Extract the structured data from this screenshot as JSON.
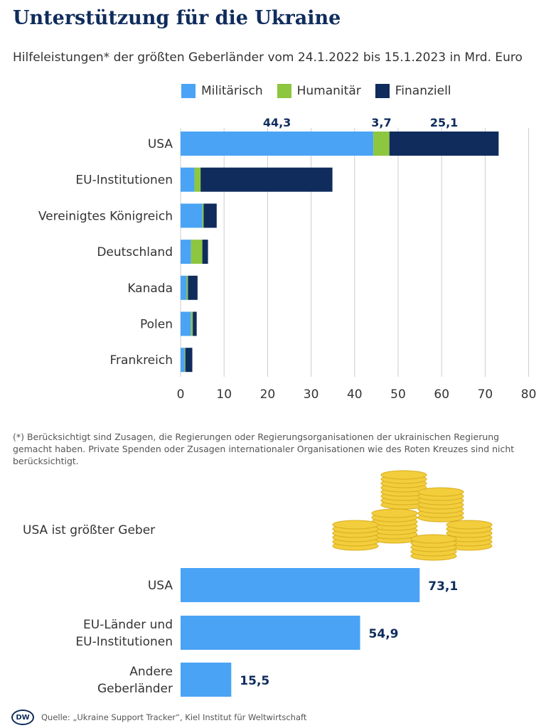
{
  "title": "Unterstützung für die Ukraine",
  "subtitle": "Hilfeleistungen* der größten Geberländer vom 24.1.2022 bis 15.1.2023 in Mrd. Euro",
  "legend": [
    {
      "label": "Militärisch",
      "color": "#4aa3f5"
    },
    {
      "label": "Humanitär",
      "color": "#8dc63f"
    },
    {
      "label": "Finanziell",
      "color": "#0f2c5c"
    }
  ],
  "chart_data": [
    {
      "type": "bar",
      "orientation": "horizontal",
      "stacked": true,
      "categories": [
        "USA",
        "EU-Institutionen",
        "Vereinigtes Königreich",
        "Deutschland",
        "Kanada",
        "Polen",
        "Frankreich"
      ],
      "series": [
        {
          "name": "Militärisch",
          "values": [
            44.3,
            3.2,
            5.0,
            2.4,
            1.4,
            2.4,
            0.9
          ]
        },
        {
          "name": "Humanitär",
          "values": [
            3.7,
            1.4,
            0.3,
            2.6,
            0.3,
            0.4,
            0.2
          ]
        },
        {
          "name": "Finanziell",
          "values": [
            25.1,
            30.3,
            3.0,
            1.3,
            2.2,
            0.9,
            1.6
          ]
        }
      ],
      "annotations": {
        "top_labels": [
          "44,3",
          "3,7",
          "25,1"
        ]
      },
      "xticks": [
        "0",
        "10",
        "20",
        "30",
        "40",
        "50",
        "60",
        "70",
        "80"
      ],
      "xlim": [
        0,
        80
      ],
      "grid": true
    },
    {
      "type": "bar",
      "orientation": "horizontal",
      "title": "USA ist größter Geber",
      "categories": [
        [
          "USA"
        ],
        [
          "EU-Länder und",
          "EU-Institutionen"
        ],
        [
          "Andere",
          "Geberländer"
        ]
      ],
      "values": [
        73.1,
        54.9,
        15.5
      ],
      "value_labels": [
        "73,1",
        "54,9",
        "15,5"
      ],
      "color": "#4aa3f5"
    }
  ],
  "footnote": "(*) Berücksichtigt sind Zusagen, die Regierungen oder Regierungsorganisationen der ukrainischen Regierung gemacht haben. Private Spenden oder Zusagen internationaler Organisationen wie des Roten Kreuzes sind nicht berücksichtigt.",
  "section2_title": "USA ist größter Geber",
  "source": "Quelle: „Ukraine Support Tracker“, Kiel Institut für Weltwirtschaft",
  "logo_text": "DW"
}
